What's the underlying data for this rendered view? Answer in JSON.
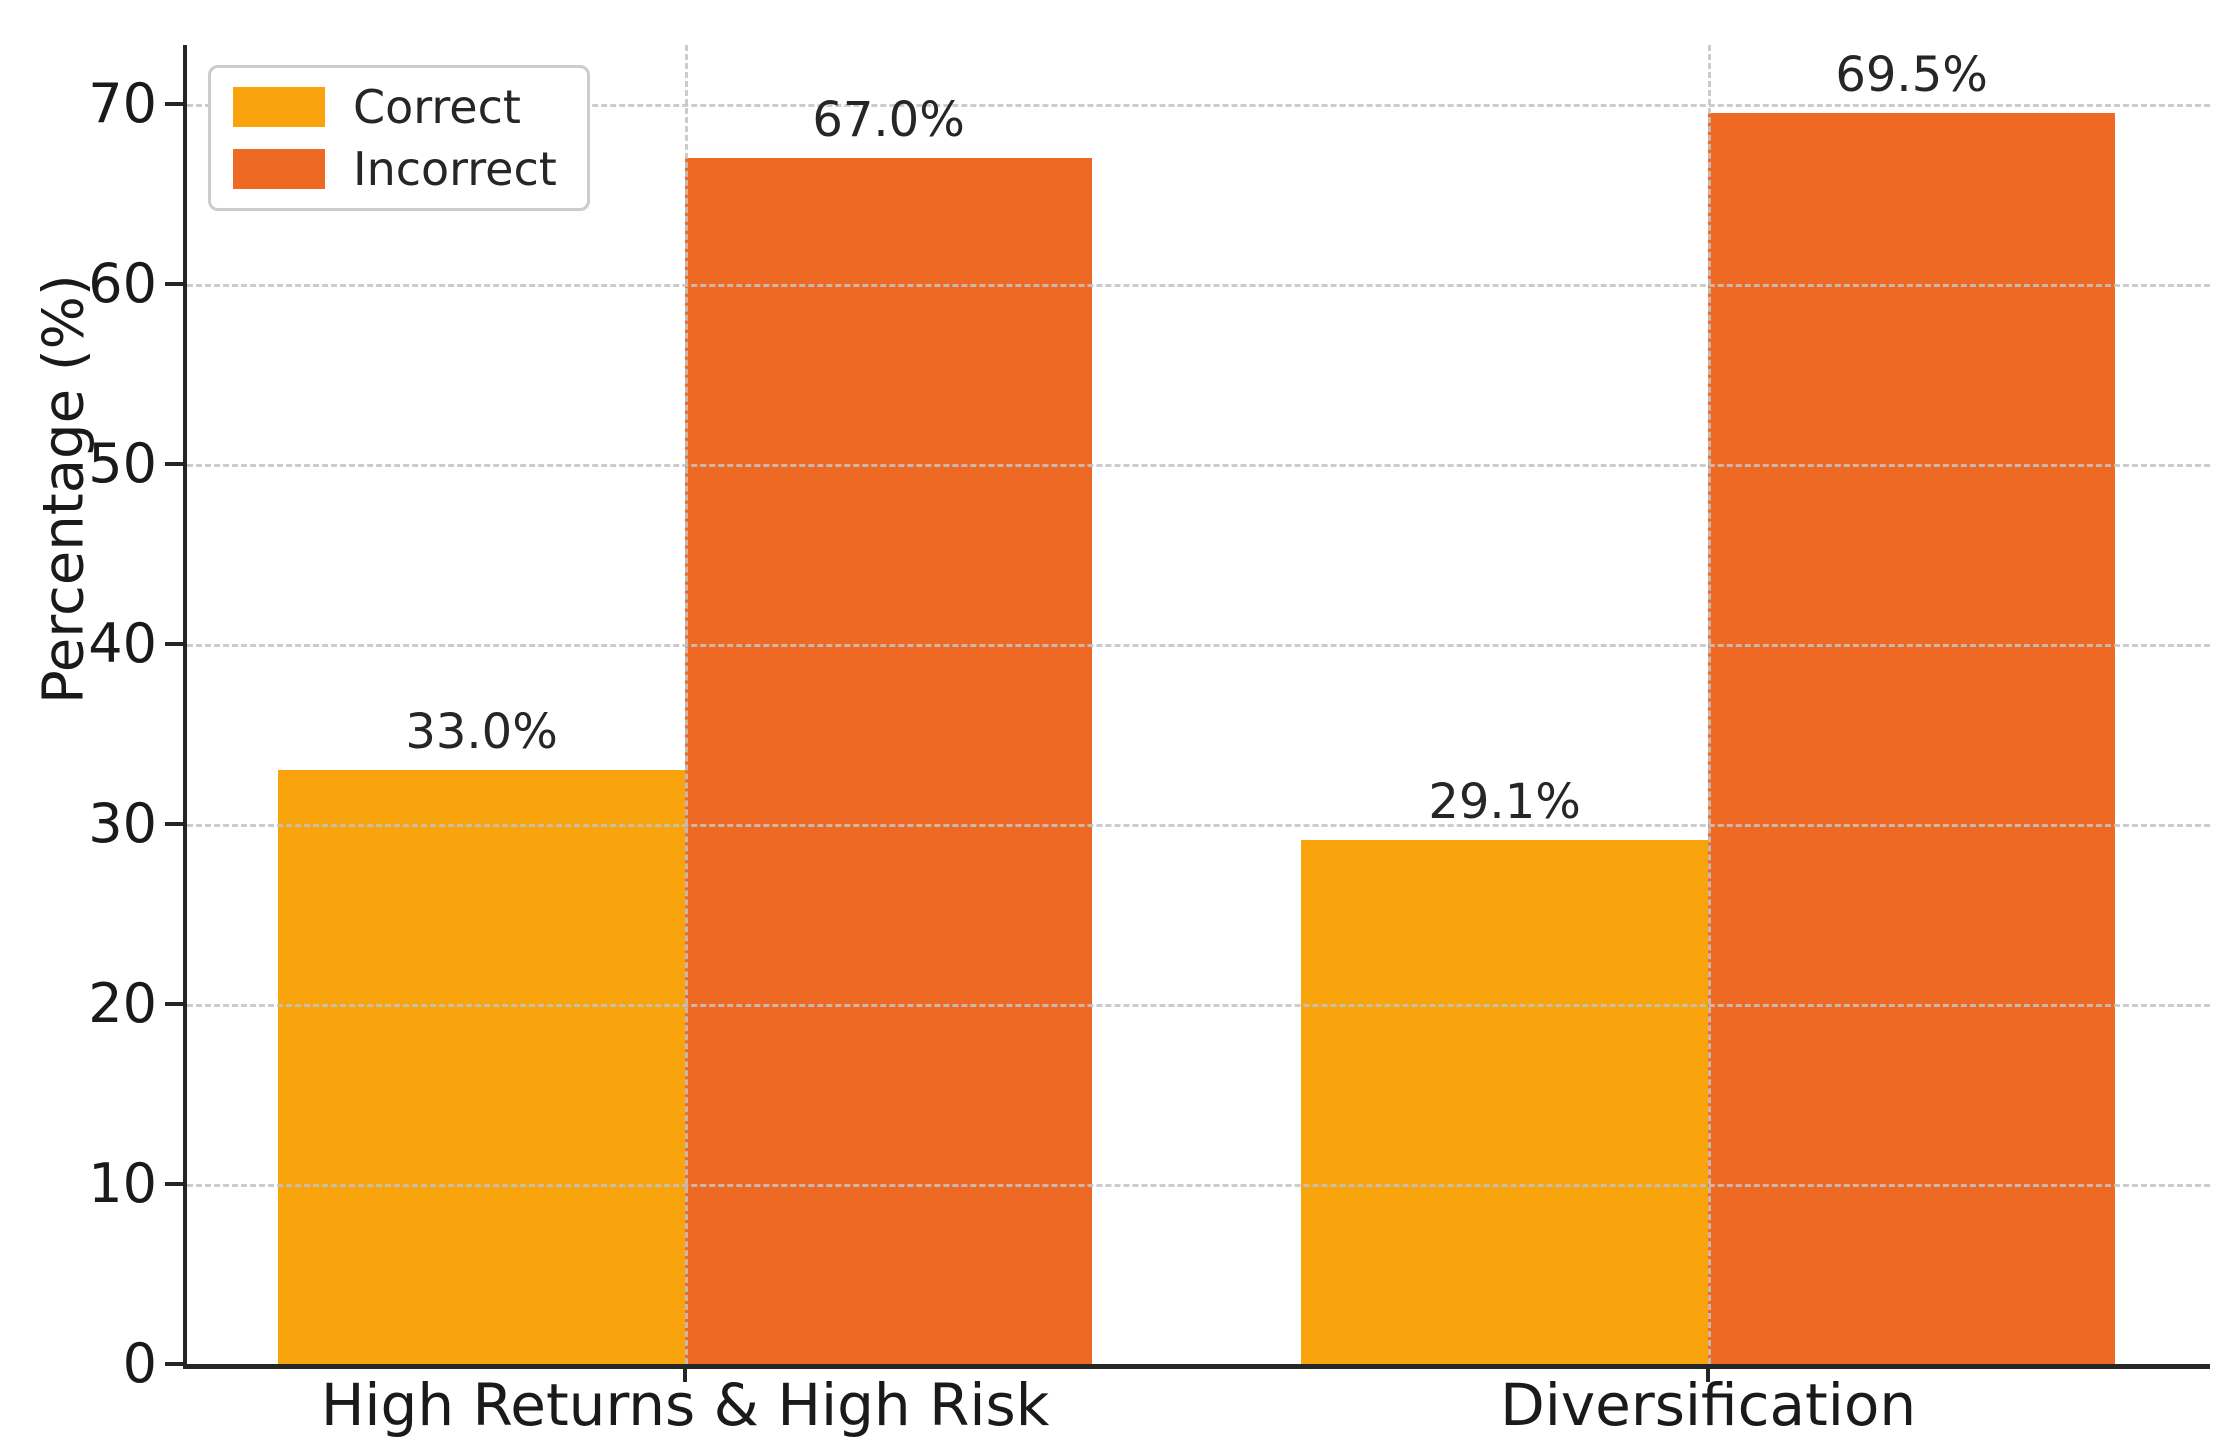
{
  "chart_data": {
    "type": "bar",
    "categories": [
      "High Returns & High Risk",
      "Diversification"
    ],
    "series": [
      {
        "name": "Correct",
        "color": "#F9A40D",
        "values": [
          33.0,
          29.1
        ],
        "labels": [
          "33.0%",
          "29.1%"
        ]
      },
      {
        "name": "Incorrect",
        "color": "#EE6A24",
        "values": [
          67.0,
          69.5
        ],
        "labels": [
          "67.0%",
          "69.5%"
        ]
      }
    ],
    "title": "",
    "xlabel": "",
    "ylabel": "Percentage (%)",
    "yticks": [
      0,
      10,
      20,
      30,
      40,
      50,
      60,
      70
    ],
    "ylim": [
      0,
      73.3
    ],
    "grid": "dashed-both-axes-above-bars",
    "legend_position": "upper-left",
    "axis_color": "#262626",
    "grid_color": "#c3c3c3"
  }
}
